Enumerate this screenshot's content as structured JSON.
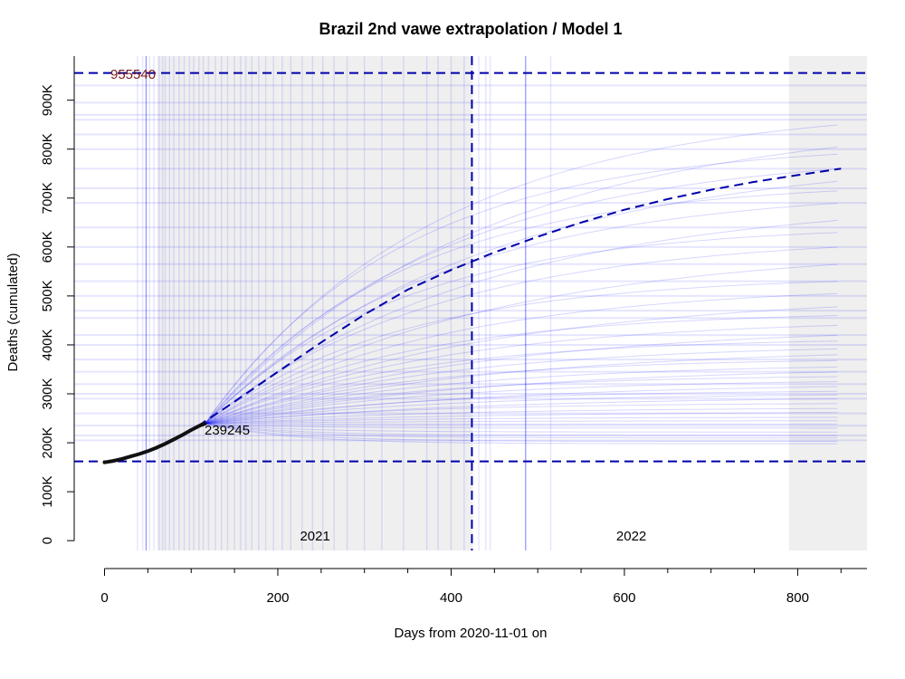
{
  "chart_data": {
    "type": "line",
    "title": "Brazil 2nd vawe extrapolation / Model 1",
    "xlabel": "Days from 2020-11-01 on",
    "ylabel": "Deaths (cumulated)",
    "xlim": [
      -35,
      880
    ],
    "ylim": [
      -20000,
      990000
    ],
    "x_ticks": [
      0,
      200,
      400,
      600,
      800
    ],
    "y_ticks": [
      0,
      100000,
      200000,
      300000,
      400000,
      500000,
      600000,
      700000,
      800000,
      900000
    ],
    "y_tick_labels": [
      "0",
      "100K",
      "200K",
      "300K",
      "400K",
      "500K",
      "600K",
      "700K",
      "800K",
      "900K"
    ],
    "year_labels": [
      {
        "label": "2021",
        "x": 243
      },
      {
        "label": "2022",
        "x": 608
      }
    ],
    "shaded_bands": [
      {
        "x0": 61,
        "x1": 425
      },
      {
        "x0": 790,
        "x1": 880
      }
    ],
    "reference_lines": {
      "upper_h": 955540,
      "lower_h": 162000,
      "vertical_x": 424
    },
    "annotations": {
      "upper_value_label": "955540",
      "current_value_label": "239245"
    },
    "observed": {
      "x": [
        0,
        10,
        20,
        30,
        40,
        50,
        60,
        70,
        80,
        90,
        100,
        110,
        116
      ],
      "y": [
        160000,
        163000,
        167000,
        172000,
        177000,
        183000,
        190000,
        198000,
        207000,
        216000,
        226000,
        235000,
        239245
      ]
    },
    "central_projection": {
      "x": [
        0,
        50,
        100,
        150,
        200,
        250,
        300,
        350,
        400,
        450,
        500,
        550,
        600,
        650,
        700,
        750,
        800,
        850
      ],
      "y": [
        160000,
        181000,
        225000,
        284000,
        345000,
        405000,
        462000,
        513000,
        553000,
        589000,
        621000,
        650000,
        676000,
        698000,
        717000,
        733000,
        747000,
        760000
      ]
    },
    "ensemble_final_values": [
      198000,
      203000,
      210000,
      215000,
      222000,
      230000,
      238000,
      245000,
      252000,
      262000,
      270000,
      280000,
      290000,
      298000,
      305000,
      315000,
      325000,
      335000,
      345000,
      355000,
      368000,
      380000,
      392000,
      408000,
      420000,
      440000,
      460000,
      478000,
      505000,
      530000,
      565000,
      600000,
      630000,
      655000,
      690000,
      715000,
      735000,
      760000,
      790000,
      805000,
      850000
    ],
    "background_h_lines": [
      205000,
      215000,
      235000,
      260000,
      290000,
      300000,
      320000,
      345000,
      370000,
      400000,
      420000,
      455000,
      470000,
      500000,
      530000,
      565000,
      600000,
      640000,
      690000,
      720000,
      760000,
      800000,
      830000,
      860000,
      870000,
      895000,
      930000
    ],
    "background_v_lines": [
      38,
      44,
      48,
      52,
      57,
      63,
      67,
      70,
      75,
      80,
      86,
      92,
      98,
      103,
      109,
      114,
      120,
      128,
      135,
      142,
      150,
      157,
      163,
      170,
      178,
      186,
      195,
      205,
      215,
      228,
      240,
      252,
      265,
      280,
      300,
      320,
      345,
      372,
      385,
      400,
      415,
      432,
      440,
      445,
      486,
      515
    ],
    "colors": {
      "ensemble": "#0000ff",
      "reference": "#0000aa",
      "observed": "#111111",
      "band": "#efefef",
      "upper_label": "#7a1a1a"
    }
  }
}
